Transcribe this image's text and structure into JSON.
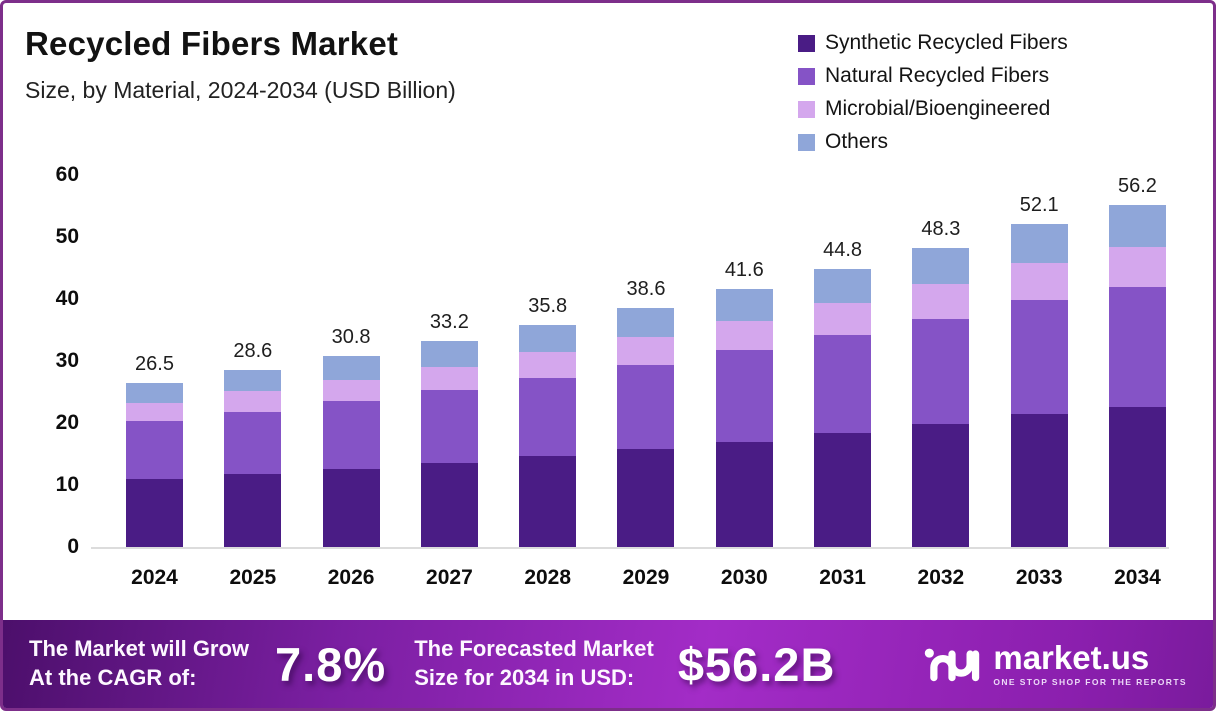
{
  "header": {
    "title": "Recycled Fibers Market",
    "subtitle": "Size, by Material, 2024-2034 (USD Billion)"
  },
  "chart_data": {
    "type": "bar",
    "stacked": true,
    "categories": [
      "2024",
      "2025",
      "2026",
      "2027",
      "2028",
      "2029",
      "2030",
      "2031",
      "2032",
      "2033",
      "2034"
    ],
    "series": [
      {
        "name": "Synthetic Recycled Fibers",
        "color": "#4a1c85",
        "values": [
          10.9,
          11.7,
          12.6,
          13.6,
          14.7,
          15.8,
          17.0,
          18.4,
          19.8,
          21.4,
          23.0
        ]
      },
      {
        "name": "Natural Recycled Fibers",
        "color": "#8553c6",
        "values": [
          9.4,
          10.1,
          10.9,
          11.7,
          12.6,
          13.6,
          14.7,
          15.8,
          17.0,
          18.4,
          19.8
        ]
      },
      {
        "name": "Microbial/Bioengineered",
        "color": "#d4a7ed",
        "values": [
          3.0,
          3.3,
          3.5,
          3.8,
          4.1,
          4.5,
          4.8,
          5.2,
          5.6,
          6.0,
          6.5
        ]
      },
      {
        "name": "Others",
        "color": "#8fa6d9",
        "values": [
          3.2,
          3.5,
          3.8,
          4.1,
          4.4,
          4.7,
          5.1,
          5.4,
          5.9,
          6.3,
          6.9
        ]
      }
    ],
    "totals": [
      26.5,
      28.6,
      30.8,
      33.2,
      35.8,
      38.6,
      41.6,
      44.8,
      48.3,
      52.1,
      56.2
    ],
    "title": "Recycled Fibers Market Size, by Material, 2024-2034 (USD Billion)",
    "xlabel": "",
    "ylabel": "",
    "ylim": [
      0,
      60
    ],
    "yticks": [
      0,
      10,
      20,
      30,
      40,
      50,
      60
    ],
    "grid": false,
    "legend_position": "top-right"
  },
  "footer": {
    "cagr_label_line1": "The Market will Grow",
    "cagr_label_line2": "At the CAGR of:",
    "cagr_value": "7.8%",
    "forecast_label_line1": "The Forecasted Market",
    "forecast_label_line2": "Size for 2034 in USD:",
    "forecast_value": "$56.2B",
    "logo_text": "market.us",
    "logo_tagline": "ONE STOP SHOP FOR THE REPORTS"
  }
}
